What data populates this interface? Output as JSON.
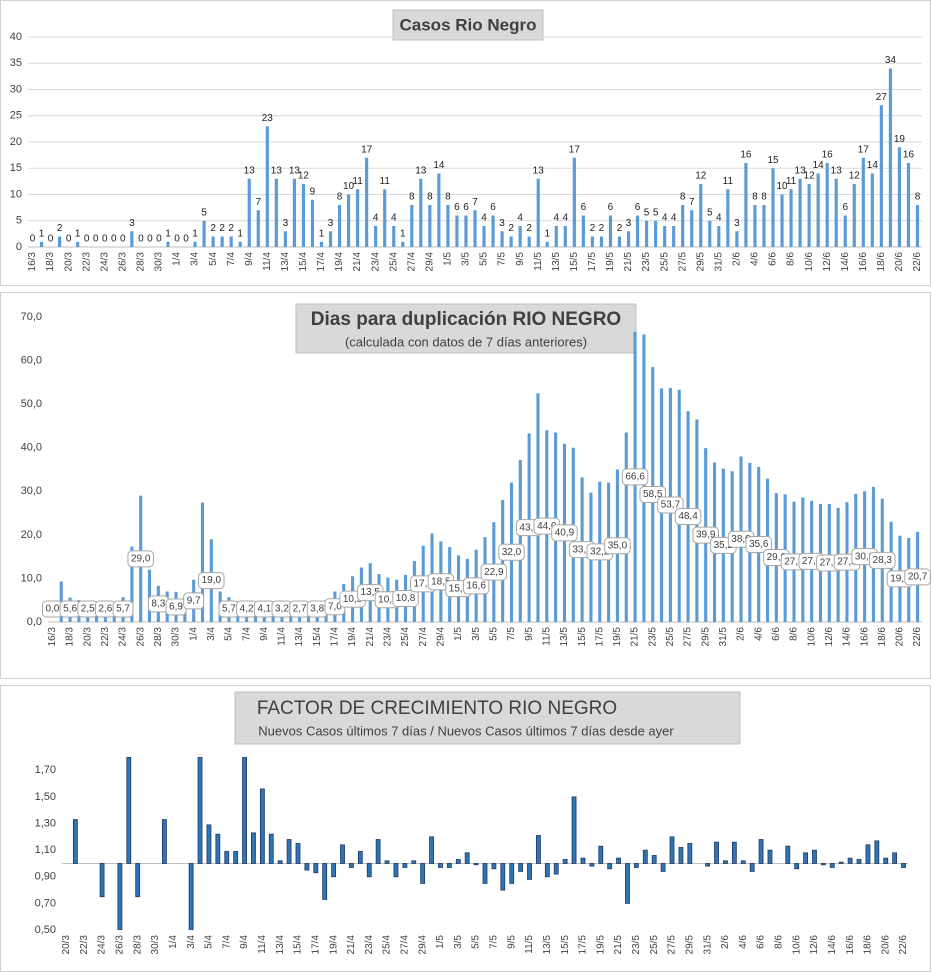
{
  "chart_data": [
    {
      "type": "bar",
      "title": "Casos Rio Negro",
      "color": "#5b9bd5",
      "grid": true,
      "categories": [
        "16/3",
        null,
        "18/3",
        null,
        "20/3",
        null,
        "22/3",
        null,
        "24/3",
        null,
        "26/3",
        null,
        "28/3",
        null,
        "30/3",
        null,
        "1/4",
        null,
        "3/4",
        null,
        "5/4",
        null,
        "7/4",
        null,
        "9/4",
        null,
        "11/4",
        null,
        "13/4",
        null,
        "15/4",
        null,
        "17/4",
        null,
        "19/4",
        null,
        "21/4",
        null,
        "23/4",
        null,
        "25/4",
        null,
        "27/4",
        null,
        "29/4",
        null,
        "1/5",
        null,
        "3/5",
        null,
        "5/5",
        null,
        "7/5",
        null,
        "9/5",
        null,
        "11/5",
        null,
        "13/5",
        null,
        "15/5",
        null,
        "17/5",
        null,
        "19/5",
        null,
        "21/5",
        null,
        "23/5",
        null,
        "25/5",
        null,
        "27/5",
        null,
        "29/5",
        null,
        "31/5",
        null,
        "2/6",
        null,
        "4/6",
        null,
        "6/6",
        null,
        "8/6",
        null,
        "10/6",
        null,
        "12/6",
        null,
        "14/6",
        null,
        "16/6",
        null,
        "18/6",
        null,
        "20/6",
        null,
        "22/6"
      ],
      "values": [
        0,
        1,
        0,
        2,
        0,
        1,
        0,
        0,
        0,
        0,
        0,
        3,
        0,
        0,
        0,
        1,
        0,
        0,
        1,
        5,
        2,
        2,
        2,
        1,
        13,
        7,
        23,
        13,
        3,
        13,
        12,
        9,
        1,
        3,
        8,
        10,
        11,
        17,
        4,
        11,
        4,
        1,
        8,
        13,
        8,
        14,
        8,
        6,
        6,
        7,
        4,
        6,
        3,
        2,
        4,
        2,
        13,
        1,
        4,
        4,
        17,
        6,
        2,
        2,
        6,
        2,
        3,
        6,
        5,
        5,
        4,
        4,
        8,
        7,
        12,
        5,
        4,
        11,
        3,
        16,
        8,
        8,
        15,
        10,
        11,
        13,
        12,
        14,
        16,
        13,
        6,
        12,
        17,
        14,
        27,
        34,
        19,
        16,
        8
      ],
      "ylim": [
        0,
        40
      ],
      "yticks": [
        0,
        5,
        10,
        15,
        20,
        25,
        30,
        35,
        40
      ]
    },
    {
      "type": "bar",
      "title": "Dias para duplicación RIO NEGRO",
      "subtitle": "(calculada con datos de 7 días anteriores)",
      "color": "#5b9bd5",
      "grid": false,
      "categories": [
        "16/3",
        null,
        "18/3",
        null,
        "20/3",
        null,
        "22/3",
        null,
        "24/3",
        null,
        "26/3",
        null,
        "28/3",
        null,
        "30/3",
        null,
        "1/4",
        null,
        "3/4",
        null,
        "5/4",
        null,
        "7/4",
        null,
        "9/4",
        null,
        "11/4",
        null,
        "13/4",
        null,
        "15/4",
        null,
        "17/4",
        null,
        "19/4",
        null,
        "21/4",
        null,
        "23/4",
        null,
        "25/4",
        null,
        "27/4",
        null,
        "29/4",
        null,
        "1/5",
        null,
        "3/5",
        null,
        "5/5",
        null,
        "7/5",
        null,
        "9/5",
        null,
        "11/5",
        null,
        "13/5",
        null,
        "15/5",
        null,
        "17/5",
        null,
        "19/5",
        null,
        "21/5",
        null,
        "23/5",
        null,
        "25/5",
        null,
        "27/5",
        null,
        "29/5",
        null,
        "31/5",
        null,
        "2/6",
        null,
        "4/6",
        null,
        "6/6",
        null,
        "8/6",
        null,
        "10/6",
        null,
        "12/6",
        null,
        "14/6",
        null,
        "16/6",
        null,
        "18/6",
        null,
        "20/6",
        null,
        "22/6"
      ],
      "values": [
        0.0,
        9.3,
        5.6,
        5.0,
        2.5,
        3.0,
        2.6,
        2.8,
        5.7,
        17.3,
        29.0,
        12.0,
        8.3,
        7.0,
        6.9,
        6.0,
        9.7,
        27.4,
        19.0,
        7.0,
        5.7,
        4.5,
        4.2,
        4.0,
        4.1,
        3.5,
        3.2,
        3.0,
        2.7,
        3.2,
        3.8,
        5.0,
        7.0,
        8.7,
        10.5,
        12.5,
        13.5,
        11.0,
        10.2,
        9.7,
        10.8,
        14.0,
        17.5,
        20.3,
        18.5,
        17.2,
        15.3,
        14.5,
        16.6,
        19.5,
        22.9,
        28.0,
        32.0,
        37.2,
        43.3,
        52.5,
        44.0,
        43.5,
        40.9,
        40.0,
        33.2,
        29.7,
        32.2,
        32.0,
        35.0,
        43.5,
        66.6,
        66.0,
        58.5,
        53.6,
        53.7,
        53.3,
        48.4,
        46.5,
        39.9,
        36.6,
        35.2,
        34.6,
        38.0,
        36.5,
        35.6,
        32.9,
        29.6,
        29.3,
        27.6,
        28.6,
        27.8,
        27.1,
        27.1,
        26.2,
        27.5,
        29.4,
        30.0,
        31.0,
        28.3,
        23.0,
        19.8,
        19.3,
        20.7
      ],
      "value_labels": [
        "0,0",
        null,
        "5,6",
        null,
        "2,5",
        null,
        "2,6",
        null,
        "5,7",
        null,
        "29,0",
        null,
        "8,3",
        null,
        "6,9",
        null,
        "9,7",
        null,
        "19,0",
        null,
        "5,7",
        null,
        "4,2",
        null,
        "4,1",
        null,
        "3,2",
        null,
        "2,7",
        null,
        "3,8",
        null,
        "7,0",
        null,
        "10,5",
        null,
        "13,5",
        null,
        "10,2",
        null,
        "10,8",
        null,
        "17,5",
        null,
        "18,5",
        null,
        "15,3",
        null,
        "16,6",
        null,
        "22,9",
        null,
        "32,0",
        null,
        "43,3",
        null,
        "44,0",
        null,
        "40,9",
        null,
        "33,2",
        null,
        "32,2",
        null,
        "35,0",
        null,
        "66,6",
        null,
        "58,5",
        null,
        "53,7",
        null,
        "48,4",
        null,
        "39,9",
        null,
        "35,2",
        null,
        "38,0",
        null,
        "35,6",
        null,
        "29,6",
        null,
        "27,6",
        null,
        "27,8",
        null,
        "27,1",
        null,
        "27,5",
        null,
        "30,0",
        null,
        "28,3",
        null,
        "19,8",
        null,
        "20,7"
      ],
      "ylim": [
        0,
        70
      ],
      "yticks": [
        {
          "value": 0,
          "label": "0,0"
        },
        {
          "value": 10,
          "label": "10,0"
        },
        {
          "value": 20,
          "label": "20,0"
        },
        {
          "value": 30,
          "label": "30,0"
        },
        {
          "value": 40,
          "label": "40,0"
        },
        {
          "value": 50,
          "label": "50,0"
        },
        {
          "value": 60,
          "label": "60,0"
        },
        {
          "value": 70,
          "label": "70,0"
        }
      ]
    },
    {
      "type": "bar",
      "title": "FACTOR DE CRECIMIENTO RIO NEGRO",
      "subtitle": "Nuevos Casos últimos 7 días / Nuevos Casos últimos 7 días desde ayer",
      "color": "#2e75b6",
      "grid": false,
      "x_axis_crosses": 1,
      "categories": [
        "20/3",
        null,
        "22/3",
        null,
        "24/3",
        null,
        "26/3",
        null,
        "28/3",
        null,
        "30/3",
        null,
        "1/4",
        null,
        "3/4",
        null,
        "5/4",
        null,
        "7/4",
        null,
        "9/4",
        null,
        "11/4",
        null,
        "13/4",
        null,
        "15/4",
        null,
        "17/4",
        null,
        "19/4",
        null,
        "21/4",
        null,
        "23/4",
        null,
        "25/4",
        null,
        "27/4",
        null,
        "29/4",
        null,
        "1/5",
        null,
        "3/5",
        null,
        "5/5",
        null,
        "7/5",
        null,
        "9/5",
        null,
        "11/5",
        null,
        "13/5",
        null,
        "15/5",
        null,
        "17/5",
        null,
        "19/5",
        null,
        "21/5",
        null,
        "23/5",
        null,
        "25/5",
        null,
        "27/5",
        null,
        "29/5",
        null,
        "31/5",
        null,
        "2/6",
        null,
        "4/6",
        null,
        "6/6",
        null,
        "8/6",
        null,
        "10/6",
        null,
        "12/6",
        null,
        "14/6",
        null,
        "16/6",
        null,
        "18/6",
        null,
        "20/6",
        null,
        "22/6"
      ],
      "values": [
        null,
        1.33,
        null,
        null,
        0.75,
        null,
        0.5,
        1.8,
        0.75,
        null,
        null,
        1.33,
        null,
        null,
        0.5,
        1.8,
        1.29,
        1.22,
        1.09,
        1.09,
        1.8,
        1.23,
        1.56,
        1.22,
        1.02,
        1.18,
        1.15,
        0.95,
        0.93,
        0.73,
        0.9,
        1.14,
        0.97,
        1.09,
        0.9,
        1.18,
        1.02,
        0.9,
        0.97,
        1.02,
        0.85,
        1.2,
        0.97,
        0.97,
        1.03,
        1.08,
        0.99,
        0.85,
        0.96,
        0.8,
        0.85,
        0.94,
        0.88,
        1.21,
        0.9,
        0.92,
        1.03,
        1.5,
        1.04,
        0.98,
        1.13,
        0.96,
        1.04,
        0.7,
        0.97,
        1.1,
        1.06,
        0.94,
        1.2,
        1.12,
        1.15,
        1.0,
        0.98,
        1.16,
        1.02,
        1.16,
        1.02,
        0.94,
        1.18,
        1.1,
        1.0,
        1.13,
        0.96,
        1.08,
        1.1,
        0.99,
        0.97,
        1.01,
        1.04,
        1.03,
        1.14,
        1.17,
        1.04,
        1.08,
        0.97
      ],
      "ylim": [
        0.5,
        1.8
      ],
      "yticks": [
        {
          "value": 0.5,
          "label": "0,50"
        },
        {
          "value": 0.7,
          "label": "0,70"
        },
        {
          "value": 0.9,
          "label": "0,90"
        },
        {
          "value": 1.1,
          "label": "1,10"
        },
        {
          "value": 1.3,
          "label": "1,30"
        },
        {
          "value": 1.5,
          "label": "1,50"
        },
        {
          "value": 1.7,
          "label": "1,70"
        }
      ]
    }
  ]
}
